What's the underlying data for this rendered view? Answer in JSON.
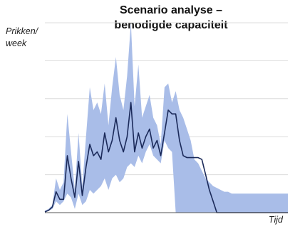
{
  "chart_data": {
    "type": "area",
    "title_line1": "Scenario analyse –",
    "title_line2": "benodigde capaciteit",
    "ylabel_line1": "Prikken/",
    "ylabel_line2": "week",
    "xlabel": "Tijd",
    "grid": true,
    "colors": {
      "band": "#a9bde8",
      "line": "#1b2a5a",
      "grid": "#dcdcdc",
      "axis": "#555555"
    },
    "ylim": [
      0,
      5
    ],
    "x": [
      0,
      1,
      2,
      3,
      4,
      5,
      6,
      7,
      8,
      9,
      10,
      11,
      12,
      13,
      14,
      15,
      16,
      17,
      18,
      19,
      20,
      21,
      22,
      23,
      24,
      25,
      26,
      27,
      28,
      29,
      30,
      31,
      32,
      33,
      34,
      35,
      36,
      37,
      38,
      39,
      40,
      41,
      42,
      43,
      44,
      45,
      46,
      47,
      48,
      49,
      50,
      51,
      52,
      53,
      54,
      55,
      56,
      57,
      58,
      59,
      60,
      61,
      62,
      63,
      64,
      65
    ],
    "series": [
      {
        "role": "upper",
        "values": [
          0.05,
          0.1,
          0.2,
          0.9,
          0.6,
          0.8,
          2.6,
          1.6,
          0.6,
          2.1,
          0.7,
          2.0,
          3.3,
          2.7,
          2.9,
          2.6,
          3.4,
          2.3,
          3.3,
          4.1,
          3.1,
          2.7,
          3.6,
          5.0,
          2.8,
          3.9,
          2.5,
          2.8,
          3.1,
          2.5,
          2.3,
          1.8,
          3.3,
          3.4,
          2.9,
          3.2,
          2.7,
          2.5,
          2.2,
          1.9,
          1.4,
          1.3,
          1.1,
          0.9,
          0.8,
          0.7,
          0.65,
          0.6,
          0.55,
          0.55,
          0.5,
          0.5,
          0.5,
          0.5,
          0.5,
          0.5,
          0.5,
          0.5,
          0.5,
          0.5,
          0.5,
          0.5,
          0.5,
          0.5,
          0.5,
          0.5
        ]
      },
      {
        "role": "lower",
        "values": [
          0.0,
          0.05,
          0.1,
          0.3,
          0.2,
          0.3,
          0.5,
          0.4,
          0.1,
          0.5,
          0.2,
          0.3,
          0.6,
          0.5,
          0.6,
          0.7,
          0.9,
          0.6,
          0.9,
          1.0,
          0.8,
          0.9,
          1.2,
          1.3,
          1.2,
          1.5,
          1.3,
          1.6,
          1.8,
          1.5,
          1.4,
          1.3,
          1.9,
          1.7,
          1.6,
          0.0,
          0.0,
          0.0,
          0.0,
          0.0,
          0.0,
          0.0,
          0.0,
          0.0,
          0.0,
          0.0,
          0.0,
          0.0,
          0.0,
          0.0,
          0.0,
          0.0,
          0.0,
          0.0,
          0.0,
          0.0,
          0.0,
          0.0,
          0.0,
          0.0,
          0.0,
          0.0,
          0.0,
          0.0,
          0.0,
          0.0
        ]
      },
      {
        "role": "median",
        "values": [
          0.02,
          0.06,
          0.15,
          0.55,
          0.35,
          0.35,
          1.5,
          0.9,
          0.4,
          1.35,
          0.45,
          1.2,
          1.8,
          1.5,
          1.6,
          1.4,
          2.1,
          1.6,
          1.9,
          2.5,
          1.9,
          1.6,
          2.0,
          2.9,
          1.6,
          2.1,
          1.7,
          2.0,
          2.2,
          1.7,
          1.9,
          1.5,
          2.1,
          2.7,
          2.6,
          2.6,
          1.9,
          1.5,
          1.45,
          1.45,
          1.45,
          1.45,
          1.4,
          1.0,
          0.6,
          0.3,
          0.0,
          0.0,
          0.0,
          0.0,
          0.0,
          0.0,
          0.0,
          0.0,
          0.0,
          0.0,
          0.0,
          0.0,
          0.0,
          0.0,
          0.0,
          0.0,
          0.0,
          0.0,
          0.0,
          0.0
        ]
      }
    ]
  }
}
